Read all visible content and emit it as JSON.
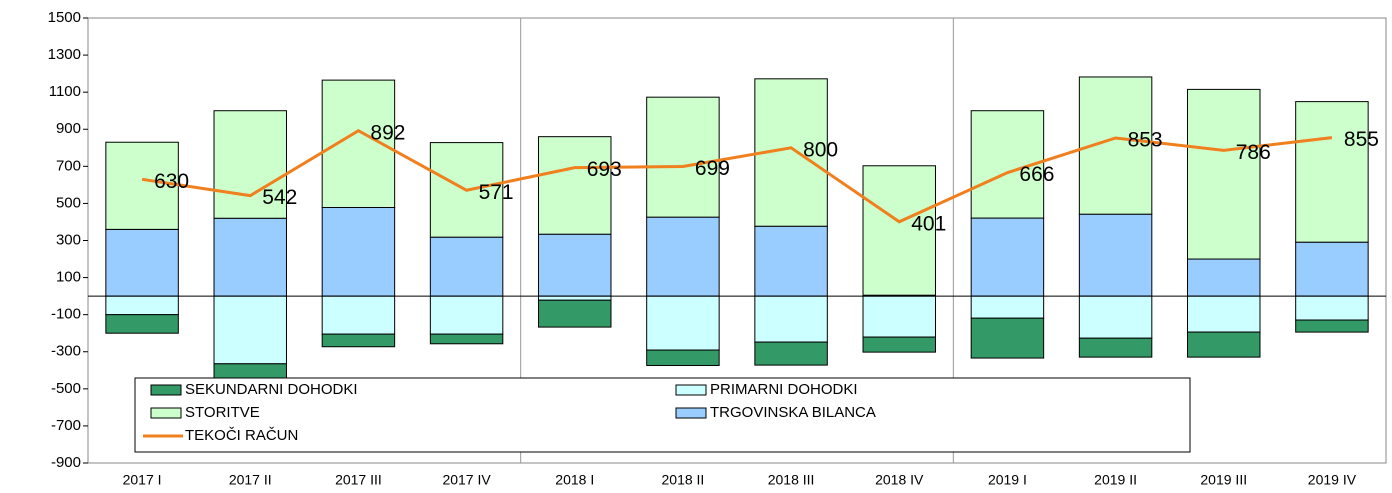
{
  "chart_data": {
    "type": "bar",
    "stacked": true,
    "categories": [
      "2017 I",
      "2017 II",
      "2017 III",
      "2017 IV",
      "2018 I",
      "2018 II",
      "2018 III",
      "2018 IV",
      "2019 I",
      "2019 II",
      "2019 III",
      "2019 IV"
    ],
    "series": [
      {
        "name": "SEKUNDARNI DOHODKI",
        "type": "bar",
        "color": "#339966",
        "values": [
          -100,
          -93,
          -68,
          -52,
          -145,
          -83,
          -124,
          -81,
          -215,
          -102,
          -135,
          -65
        ]
      },
      {
        "name": "PRIMARNI DOHODKI",
        "type": "bar",
        "color": "#ccffff",
        "values": [
          -100,
          -365,
          -205,
          -205,
          -22,
          -291,
          -248,
          -221,
          -119,
          -227,
          -194,
          -129
        ]
      },
      {
        "name": "STORITVE",
        "type": "bar",
        "color": "#ccffcc",
        "values": [
          470,
          580,
          687,
          510,
          526,
          647,
          795,
          698,
          579,
          740,
          915,
          758
        ]
      },
      {
        "name": "TRGOVINSKA BILANCA",
        "type": "bar",
        "color": "#99ccff",
        "values": [
          360,
          420,
          478,
          318,
          334,
          426,
          377,
          5,
          421,
          442,
          200,
          291
        ]
      },
      {
        "name": "TEKOČI RAČUN",
        "type": "line",
        "color": "#f07f1e",
        "values": [
          630,
          542,
          892,
          571,
          693,
          699,
          800,
          401,
          666,
          853,
          786,
          855
        ]
      }
    ],
    "ylim": [
      -900,
      1500
    ],
    "yticks": [
      -900,
      -700,
      -500,
      -300,
      -100,
      100,
      300,
      500,
      700,
      900,
      1100,
      1300,
      1500
    ],
    "legend": "bottom-left"
  }
}
